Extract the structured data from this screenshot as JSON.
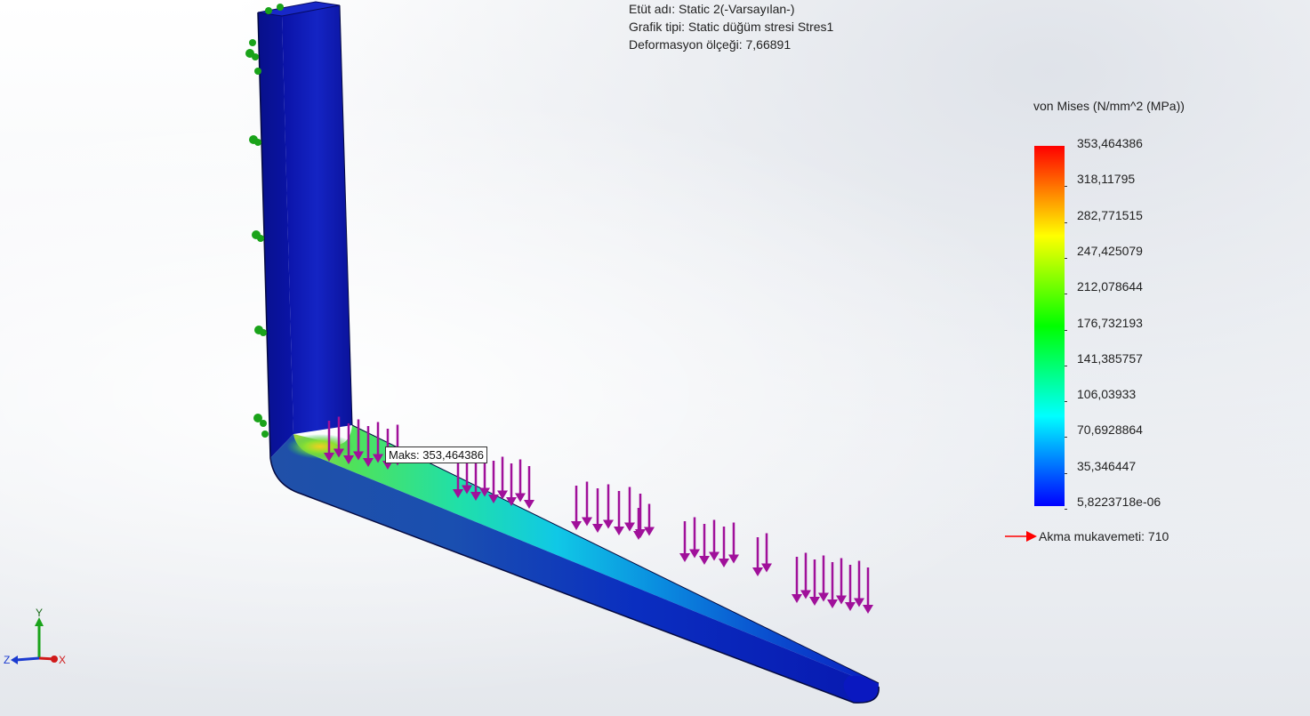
{
  "study_info": {
    "study_name": "Etüt adı: Static 2(-Varsayılan-)",
    "plot_type": "Grafik tipi: Static düğüm stresi Stres1",
    "deformation_scale": "Deformasyon ölçeği: 7,66891"
  },
  "legend": {
    "title": "von Mises (N/mm^2 (MPa))",
    "ticks": [
      "353,464386",
      "318,11795",
      "282,771515",
      "247,425079",
      "212,078644",
      "176,732193",
      "141,385757",
      "106,03933",
      "70,6928864",
      "35,346447",
      "5,8223718e-06"
    ],
    "colors": [
      "#ff0000",
      "#ff8000",
      "#ffff00",
      "#80ff00",
      "#00ff00",
      "#00ff80",
      "#00ffff",
      "#0080ff",
      "#0000ff"
    ],
    "yield_label": "Akma mukavemeti: 710",
    "yield_color": "#ff0000"
  },
  "max_callout": "Maks: 353,464386",
  "triad": {
    "y_label": "Y",
    "z_label": "Z",
    "x_label": "X"
  },
  "load_color": "#a0109a",
  "fixture_color": "#1aa31a"
}
